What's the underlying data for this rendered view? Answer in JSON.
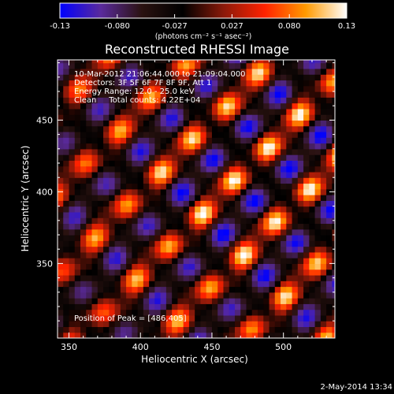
{
  "chart_data": {
    "type": "heatmap",
    "title": "Reconstructed RHESSI Image",
    "xlabel": "Heliocentric X (arcsec)",
    "ylabel": "Heliocentric Y (arcsec)",
    "xlim": [
      342,
      536
    ],
    "ylim": [
      298,
      492
    ],
    "x_ticks": [
      350,
      400,
      450,
      500
    ],
    "y_ticks": [
      350,
      400,
      450
    ],
    "colorbar": {
      "min": -0.13,
      "max": 0.13,
      "tick_labels": [
        "-0.13",
        "-0.080",
        "-0.027",
        "0.027",
        "0.080",
        "0.13"
      ],
      "unit_label": "(photons cm⁻² s⁻¹ asec⁻²)",
      "colormap": [
        "#0000ff",
        "#5a2a9c",
        "#2a1210",
        "#000000",
        "#8b1a0a",
        "#ff2200",
        "#ff9a00",
        "#ffffff"
      ]
    },
    "peak": [
      486,
      405
    ],
    "annotations": {
      "line1": "10-Mar-2012 21:06:44.000 to 21:09:04.000",
      "line2": "Detectors: 3F 5F 6F 7F 8F 9F, Att 1",
      "line3": "Energy Range: 12.0 - 25.0 keV",
      "line4": "Clean     Total counts: 4.22E+04",
      "peak_text": "Position of Peak = [486,405]"
    }
  },
  "footer_date": "2-May-2014 13:34"
}
